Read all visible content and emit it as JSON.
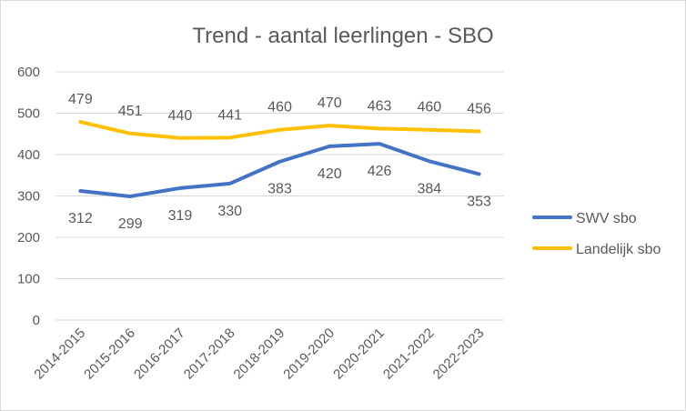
{
  "chart_data": {
    "type": "line",
    "title": "Trend - aantal leerlingen - SBO",
    "xlabel": "",
    "ylabel": "",
    "categories": [
      "2014-2015",
      "2015-2016",
      "2016-2017",
      "2017-2018",
      "2018-2019",
      "2019-2020",
      "2020-2021",
      "2021-2022",
      "2022-2023"
    ],
    "series": [
      {
        "name": "SWV sbo",
        "color": "#4472C4",
        "values": [
          312,
          299,
          319,
          330,
          383,
          420,
          426,
          384,
          353
        ],
        "labels": [
          "312",
          "299",
          "319",
          "330",
          "383",
          "420",
          "426",
          "384",
          "353"
        ],
        "label_position": "below"
      },
      {
        "name": "Landelijk sbo",
        "color": "#FFC000",
        "values": [
          479,
          451,
          440,
          441,
          460,
          470,
          463,
          460,
          456
        ],
        "labels": [
          "479",
          "451",
          "440",
          "441",
          "460",
          "470",
          "463",
          "460",
          "456"
        ],
        "label_position": "above"
      }
    ],
    "ylim": [
      0,
      600
    ],
    "yticks": [
      0,
      100,
      200,
      300,
      400,
      500,
      600
    ],
    "grid": true,
    "legend": "right"
  }
}
